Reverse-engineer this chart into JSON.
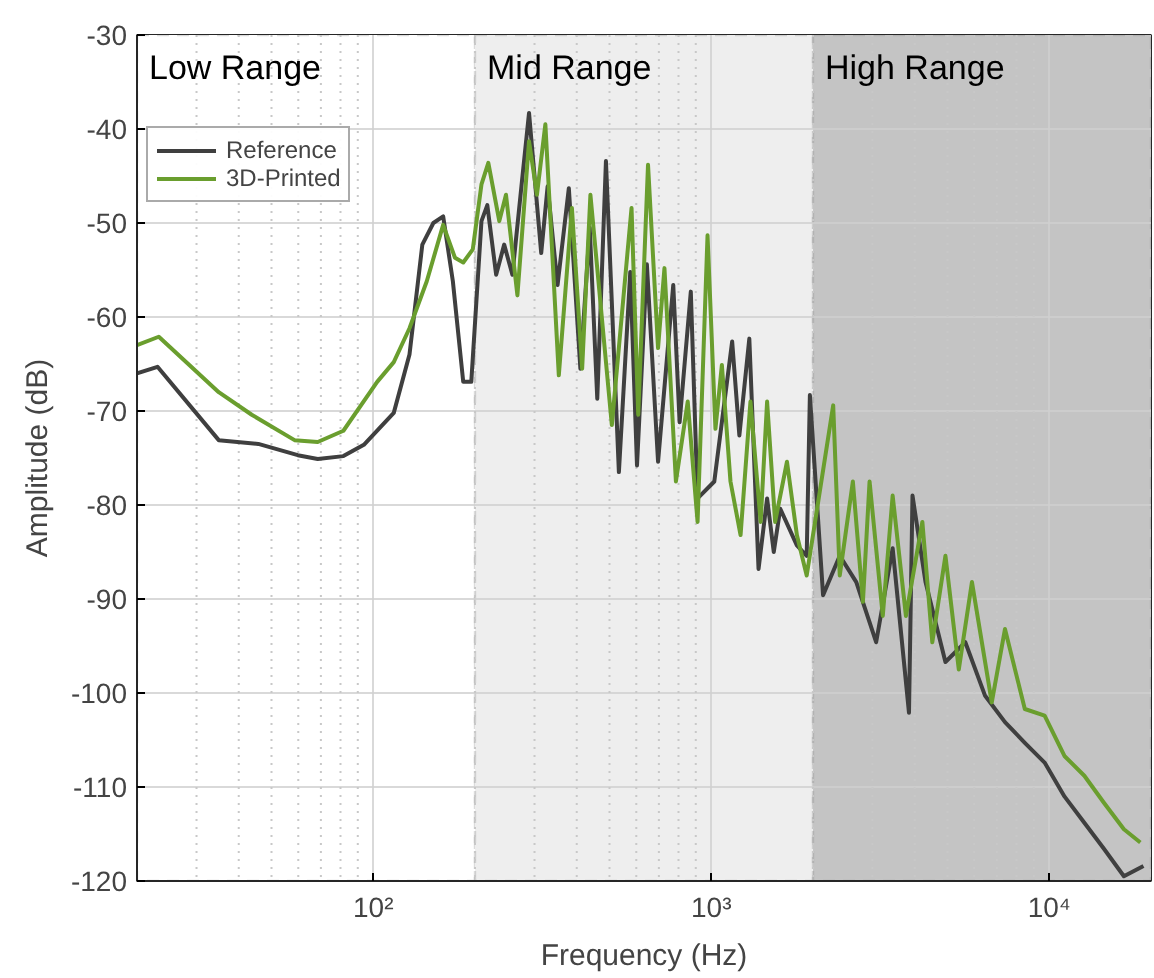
{
  "chart_data": {
    "type": "line",
    "xlabel": "Frequency (Hz)",
    "ylabel": "Amplitude (dB)",
    "log": "x",
    "xlim": [
      20,
      20000
    ],
    "ylim": [
      -120,
      -30
    ],
    "xticks": [
      {
        "value": 100,
        "label": "10²"
      },
      {
        "value": 1000,
        "label": "10³"
      },
      {
        "value": 10000,
        "label": "10⁴"
      }
    ],
    "yticks": [
      -120,
      -110,
      -100,
      -90,
      -80,
      -70,
      -60,
      -50,
      -40,
      -30
    ],
    "grid": true,
    "legend": "top left",
    "line_style": "solid",
    "bands": [
      {
        "axis": "x",
        "from": 20,
        "to": 200,
        "label": "Low Range",
        "color": "#ffffff"
      },
      {
        "axis": "x",
        "from": 200,
        "to": 2000,
        "label": "Mid Range",
        "color": "#eeeeee"
      },
      {
        "axis": "x",
        "from": 2000,
        "to": 20000,
        "label": "High Range",
        "color": "#c4c4c4"
      }
    ],
    "series": [
      {
        "name": "Reference",
        "color": "#3f3f3f",
        "x": [
          20,
          23,
          34.9,
          45.7,
          59.8,
          68.5,
          81.6,
          93.8,
          115,
          128,
          139.7,
          150.6,
          161,
          172,
          184.6,
          195,
          209,
          217.5,
          231,
          244,
          258,
          276.6,
          289,
          314,
          328,
          351,
          379,
          410,
          437,
          460,
          488,
          533,
          576,
          603,
          645,
          696,
          772,
          806,
          870,
          911,
          1021,
          1153,
          1211,
          1296,
          1380,
          1463,
          1531,
          1600,
          1792,
          1916,
          1958,
          2142,
          2400,
          2686,
          3075,
          3441,
          3846,
          3939,
          4305,
          4930,
          5645,
          6460,
          7396,
          8467,
          9690,
          11090,
          12700,
          14530,
          16630,
          19000
        ],
        "values": [
          -66.0,
          -65.3,
          -73.1,
          -73.5,
          -74.7,
          -75.1,
          -74.8,
          -73.6,
          -70.2,
          -64.0,
          -52.3,
          -50.0,
          -49.3,
          -56.2,
          -66.9,
          -66.9,
          -49.8,
          -48.1,
          -55.5,
          -52.3,
          -55.5,
          -44.9,
          -38.3,
          -53.2,
          -46.1,
          -56.6,
          -46.3,
          -65.5,
          -50.5,
          -68.7,
          -43.4,
          -76.5,
          -55.2,
          -75.8,
          -54.4,
          -75.4,
          -56.6,
          -71.2,
          -57.3,
          -79.3,
          -77.5,
          -62.6,
          -72.6,
          -62.3,
          -86.8,
          -79.3,
          -85.0,
          -80.4,
          -84.3,
          -85.4,
          -68.3,
          -89.6,
          -85.4,
          -88.2,
          -94.6,
          -84.6,
          -102.1,
          -79.0,
          -88.2,
          -96.7,
          -94.6,
          -100.3,
          -103.1,
          -105.3,
          -107.4,
          -111.0,
          -113.8,
          -116.6,
          -119.5,
          -118.4
        ]
      },
      {
        "name": "3D-Printed",
        "color": "#6a9e2e",
        "x": [
          20,
          23.2,
          34.9,
          43.7,
          58.5,
          68.5,
          81.6,
          102.7,
          115,
          128,
          144,
          161,
          174.5,
          184.6,
          197,
          209,
          219,
          236,
          247,
          267,
          289,
          305,
          323,
          354,
          387,
          415,
          439,
          508,
          581,
          608,
          650,
          696,
          727,
          786,
          852,
          911,
          975,
          1029,
          1075,
          1140,
          1221,
          1306,
          1400,
          1463,
          1545,
          1675,
          1792,
          1916,
          2295,
          2400,
          2624,
          2810,
          2940,
          3217,
          3441,
          3767,
          4213,
          4508,
          4930,
          5400,
          5906,
          6760,
          7396,
          8467,
          9690,
          11090,
          12700,
          14530,
          16630,
          18600
        ],
        "values": [
          -63.0,
          -62.1,
          -68.0,
          -70.4,
          -73.1,
          -73.3,
          -72.1,
          -66.9,
          -64.8,
          -61.2,
          -56.2,
          -50.2,
          -53.7,
          -54.2,
          -52.8,
          -45.9,
          -43.6,
          -49.8,
          -47.0,
          -57.7,
          -41.3,
          -47.0,
          -39.5,
          -66.2,
          -48.4,
          -65.5,
          -47.0,
          -71.5,
          -48.4,
          -70.4,
          -43.8,
          -63.3,
          -54.8,
          -77.5,
          -69.0,
          -81.8,
          -51.3,
          -71.9,
          -65.1,
          -77.5,
          -83.2,
          -69.0,
          -81.8,
          -69.0,
          -81.8,
          -75.4,
          -83.2,
          -87.5,
          -69.4,
          -87.5,
          -77.5,
          -90.3,
          -77.5,
          -91.8,
          -79.0,
          -91.8,
          -81.8,
          -94.6,
          -85.4,
          -97.5,
          -88.2,
          -101.0,
          -93.2,
          -101.7,
          -102.4,
          -106.7,
          -108.8,
          -111.7,
          -114.5,
          -115.9
        ]
      }
    ]
  }
}
